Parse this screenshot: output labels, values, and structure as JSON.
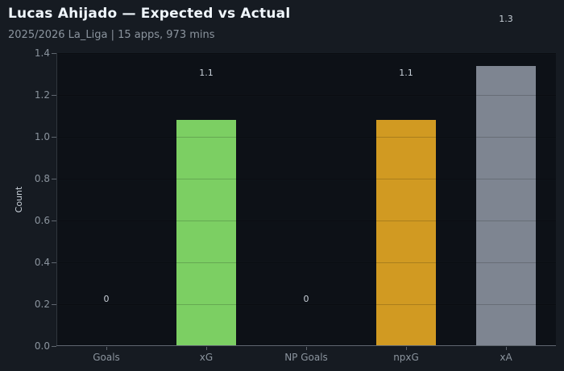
{
  "header": {
    "title": "Lucas Ahijado — Expected vs Actual",
    "subtitle": "2025/2026 La_Liga | 15 apps, 973 mins"
  },
  "colors": {
    "figure_bg": "#161b22",
    "plot_bg": "#0d1117",
    "title_text": "#f0f6fc",
    "muted_text": "#8b949e",
    "value_label_text": "#c9d1d9",
    "axis_line": "#5f666f",
    "bar_green": "#7ccf63",
    "bar_gold": "#d19a22",
    "bar_gray": "#7e8591"
  },
  "chart_data": {
    "type": "bar",
    "title": "Lucas Ahijado — Expected vs Actual",
    "subtitle": "2025/2026 La_Liga | 15 apps, 973 mins",
    "categories": [
      "Goals",
      "xG",
      "NP Goals",
      "npxG",
      "xA"
    ],
    "values": [
      0,
      1.08,
      0,
      1.08,
      1.34
    ],
    "bar_labels": [
      "0",
      "1.1",
      "0",
      "1.1",
      "1.3"
    ],
    "bar_colors": [
      "#7ccf63",
      "#7ccf63",
      "#d19a22",
      "#d19a22",
      "#7e8591"
    ],
    "xlabel": "",
    "ylabel": "Count",
    "ylim": [
      0,
      1.4
    ],
    "ytick_step": 0.2,
    "ytick_labels": [
      "0.0",
      "0.2",
      "0.4",
      "0.6",
      "0.8",
      "1.0",
      "1.2",
      "1.4"
    ],
    "grid": "horizontal-faint-over-bars",
    "legend": "none"
  }
}
